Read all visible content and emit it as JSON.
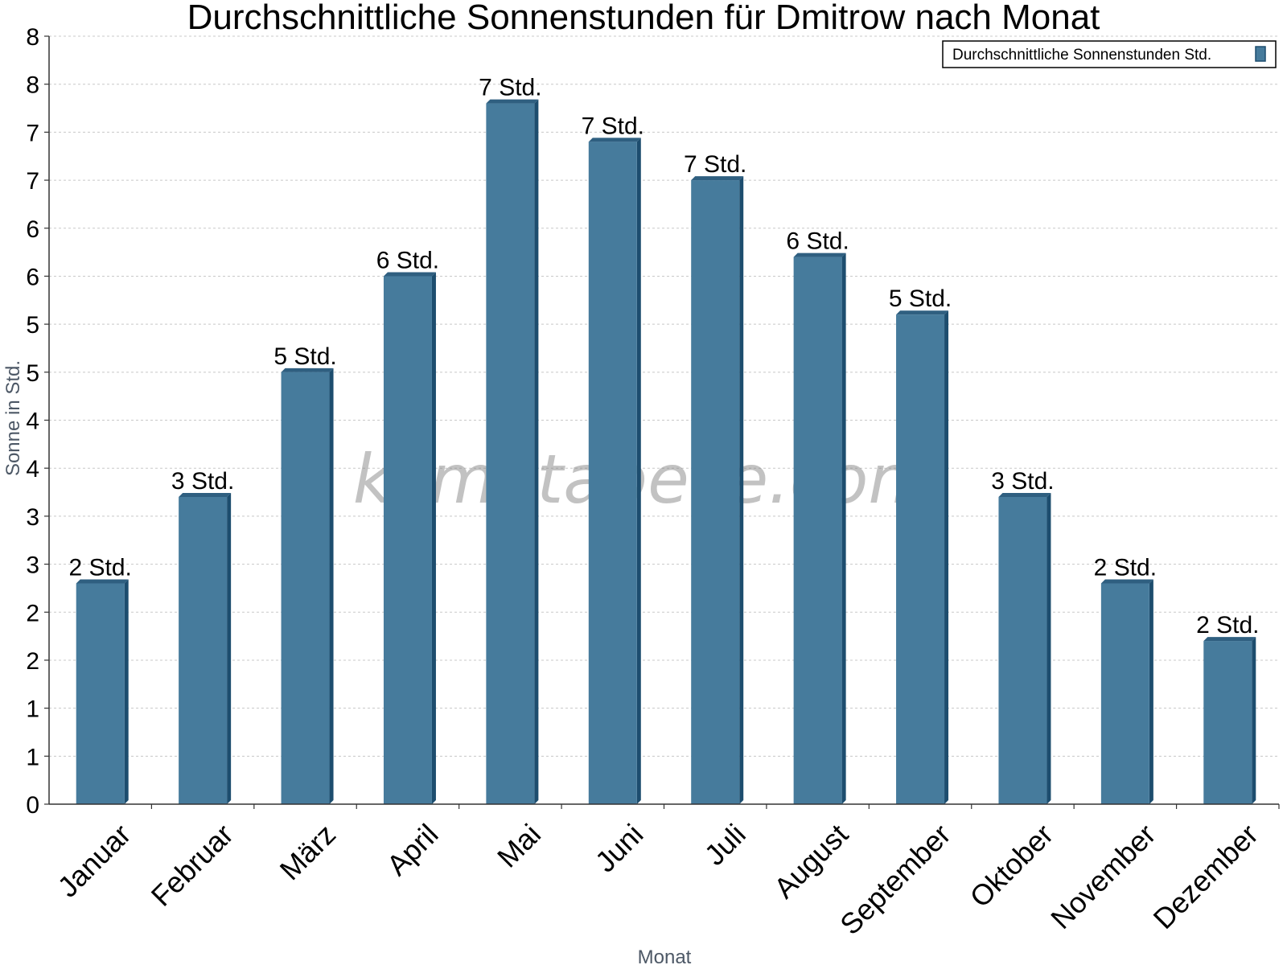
{
  "chart_data": {
    "type": "bar",
    "title": "Durchschnittliche Sonnenstunden für Dmitrow nach Monat",
    "xlabel": "Monat",
    "ylabel": "Sonne in Std.",
    "categories": [
      "Januar",
      "Februar",
      "März",
      "April",
      "Mai",
      "Juni",
      "Juli",
      "August",
      "September",
      "Oktober",
      "November",
      "Dezember"
    ],
    "series": [
      {
        "name": "Durchschnittliche Sonnenstunden Std.",
        "values": [
          2.3,
          3.2,
          4.5,
          5.5,
          7.3,
          6.9,
          6.5,
          5.7,
          5.1,
          3.2,
          2.3,
          1.7
        ],
        "data_labels": [
          "2 Std.",
          "3 Std.",
          "5 Std.",
          "6 Std.",
          "7 Std.",
          "7 Std.",
          "7 Std.",
          "6 Std.",
          "5 Std.",
          "3 Std.",
          "2 Std.",
          "2 Std."
        ]
      }
    ],
    "ylim": [
      0,
      8
    ],
    "ytick_labels": [
      "0",
      "1",
      "1",
      "2",
      "2",
      "3",
      "3",
      "4",
      "4",
      "5",
      "5",
      "6",
      "6",
      "7",
      "7",
      "8",
      "8"
    ],
    "grid": true,
    "legend_position": "top-right",
    "colors": {
      "bar": "#467b9c",
      "bar_side": "#1d4d6e",
      "bar_top": "#2f5f80"
    }
  },
  "watermark": "klimatabelle.com"
}
